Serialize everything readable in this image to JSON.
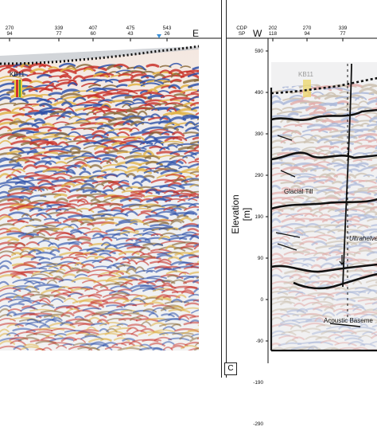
{
  "left_panel": {
    "ticks": [
      {
        "cdp": "270",
        "sp": "94"
      },
      {
        "cdp": "339",
        "sp": "77"
      },
      {
        "cdp": "407",
        "sp": "60"
      },
      {
        "cdp": "475",
        "sp": "43"
      },
      {
        "cdp": "543",
        "sp": "26"
      }
    ],
    "direction_right": "E",
    "well_label": "KB11"
  },
  "right_panel": {
    "header_labels": {
      "cdp": "CDP",
      "sp": "SP"
    },
    "direction_left": "W",
    "ticks": [
      {
        "cdp": "202",
        "sp": "118"
      },
      {
        "cdp": "270",
        "sp": "94"
      },
      {
        "cdp": "339",
        "sp": "77"
      }
    ],
    "y_axis_label": "Elevation [m]",
    "y_ticks": [
      "590",
      "490",
      "390",
      "290",
      "190",
      "90",
      "0",
      "-90",
      "-190",
      "-290"
    ],
    "well_label": "KB11",
    "annotations": {
      "glacial_till": "Glacial Till",
      "ultrahelvetic": "Ultrahelve",
      "acoustic_basement": "Acoustic Baseme"
    },
    "panel_letter": "C"
  },
  "colors": {
    "seismic_red": "#c8322a",
    "seismic_blue": "#2b4fa8",
    "seismic_brown": "#8a6a3a",
    "interpretation_line": "#111111",
    "marker_blue": "#3a8fd8"
  }
}
